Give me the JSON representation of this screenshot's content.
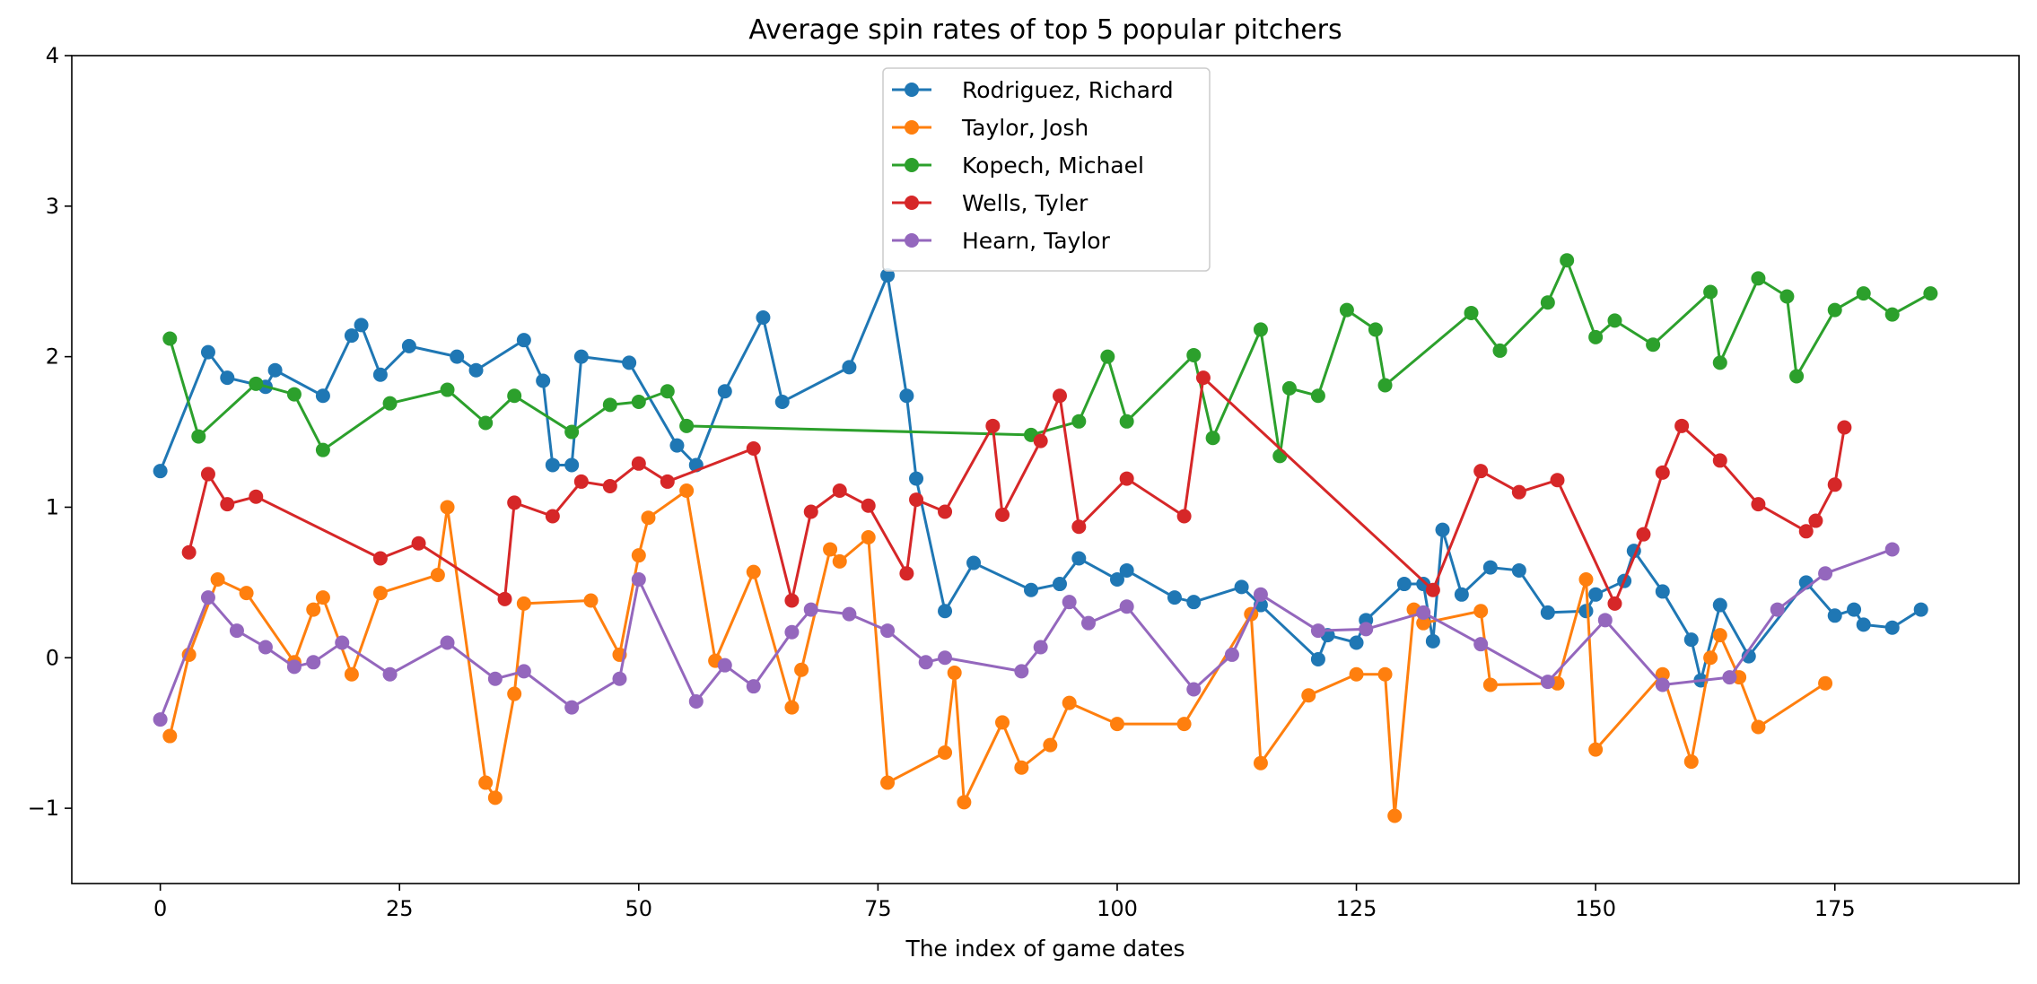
{
  "chart_data": {
    "type": "line",
    "title": "Average spin rates of top 5 popular pitchers",
    "xlabel": "The index of game dates",
    "ylabel": "",
    "xlim": [
      -9.25,
      194.25
    ],
    "ylim": [
      -1.5,
      4
    ],
    "xticks": [
      0,
      25,
      50,
      75,
      100,
      125,
      150,
      175
    ],
    "xtick_labels": [
      "0",
      "25",
      "50",
      "75",
      "100",
      "125",
      "150",
      "175"
    ],
    "yticks": [
      -1,
      0,
      1,
      2,
      3,
      4
    ],
    "ytick_labels": [
      "−1",
      "0",
      "1",
      "2",
      "3",
      "4"
    ],
    "legend_position": "upper-center",
    "series": [
      {
        "name": "Rodriguez, Richard",
        "color": "#1f77b4",
        "x": [
          0,
          5,
          7,
          11,
          12,
          17,
          20,
          21,
          23,
          26,
          31,
          33,
          38,
          40,
          41,
          43,
          44,
          49,
          54,
          56,
          59,
          63,
          65,
          72,
          76,
          78,
          79,
          82,
          85,
          91,
          94,
          96,
          100,
          101,
          106,
          108,
          113,
          115,
          121,
          122,
          125,
          126,
          130,
          132,
          133,
          134,
          136,
          139,
          142,
          145,
          149,
          150,
          153,
          154,
          157,
          160,
          161,
          163,
          166,
          172,
          175,
          177,
          178,
          181,
          184
        ],
        "y": [
          1.24,
          2.03,
          1.86,
          1.8,
          1.91,
          1.74,
          2.14,
          2.21,
          1.88,
          2.07,
          2.0,
          1.91,
          2.11,
          1.84,
          1.28,
          1.28,
          2.0,
          1.96,
          1.41,
          1.28,
          1.77,
          2.26,
          1.7,
          1.93,
          2.54,
          1.74,
          1.19,
          0.31,
          0.63,
          0.45,
          0.49,
          0.66,
          0.52,
          0.58,
          0.4,
          0.37,
          0.47,
          0.35,
          -0.01,
          0.15,
          0.1,
          0.25,
          0.49,
          0.49,
          0.11,
          0.85,
          0.42,
          0.6,
          0.58,
          0.3,
          0.31,
          0.42,
          0.51,
          0.71,
          0.44,
          0.12,
          -0.15,
          0.35,
          0.01,
          0.5,
          0.28,
          0.32,
          0.22,
          0.2,
          0.32
        ]
      },
      {
        "name": "Taylor, Josh",
        "color": "#ff7f0e",
        "x": [
          1,
          3,
          6,
          9,
          14,
          16,
          17,
          20,
          23,
          29,
          30,
          34,
          35,
          37,
          38,
          45,
          48,
          50,
          51,
          55,
          58,
          62,
          66,
          67,
          70,
          71,
          74,
          76,
          82,
          83,
          84,
          88,
          90,
          93,
          95,
          100,
          107,
          114,
          115,
          120,
          125,
          128,
          129,
          131,
          132,
          138,
          139,
          146,
          149,
          150,
          157,
          160,
          162,
          163,
          165,
          167,
          174
        ],
        "y": [
          -0.52,
          0.02,
          0.52,
          0.43,
          -0.03,
          0.32,
          0.4,
          -0.11,
          0.43,
          0.55,
          1.0,
          -0.83,
          -0.93,
          -0.24,
          0.36,
          0.38,
          0.02,
          0.68,
          0.93,
          1.11,
          -0.02,
          0.57,
          -0.33,
          -0.08,
          0.72,
          0.64,
          0.8,
          -0.83,
          -0.63,
          -0.1,
          -0.96,
          -0.43,
          -0.73,
          -0.58,
          -0.3,
          -0.44,
          -0.44,
          0.29,
          -0.7,
          -0.25,
          -0.11,
          -0.11,
          -1.05,
          0.32,
          0.23,
          0.31,
          -0.18,
          -0.17,
          0.52,
          -0.61,
          -0.11,
          -0.69,
          0.0,
          0.15,
          -0.13,
          -0.46,
          -0.17
        ]
      },
      {
        "name": "Kopech, Michael",
        "color": "#2ca02c",
        "x": [
          1,
          4,
          10,
          14,
          17,
          24,
          30,
          34,
          37,
          43,
          47,
          50,
          53,
          55,
          91,
          96,
          99,
          101,
          108,
          110,
          115,
          117,
          118,
          121,
          124,
          127,
          128,
          137,
          140,
          145,
          147,
          150,
          152,
          156,
          162,
          163,
          167,
          170,
          171,
          175,
          178,
          181,
          185
        ],
        "y": [
          2.12,
          1.47,
          1.82,
          1.75,
          1.38,
          1.69,
          1.78,
          1.56,
          1.74,
          1.5,
          1.68,
          1.7,
          1.77,
          1.54,
          1.48,
          1.57,
          2.0,
          1.57,
          2.01,
          1.46,
          2.18,
          1.34,
          1.79,
          1.74,
          2.31,
          2.18,
          1.81,
          2.29,
          2.04,
          2.36,
          2.64,
          2.13,
          2.24,
          2.08,
          2.43,
          1.96,
          2.52,
          2.4,
          1.87,
          2.31,
          2.42,
          2.28,
          2.42
        ]
      },
      {
        "name": "Wells, Tyler",
        "color": "#d62728",
        "x": [
          3,
          5,
          7,
          10,
          23,
          27,
          36,
          37,
          41,
          44,
          47,
          50,
          53,
          62,
          66,
          68,
          71,
          74,
          78,
          79,
          82,
          87,
          88,
          92,
          94,
          96,
          101,
          107,
          109,
          133,
          138,
          142,
          146,
          152,
          155,
          157,
          159,
          163,
          167,
          172,
          173,
          175,
          176
        ],
        "y": [
          0.7,
          1.22,
          1.02,
          1.07,
          0.66,
          0.76,
          0.39,
          1.03,
          0.94,
          1.17,
          1.14,
          1.29,
          1.17,
          1.39,
          0.38,
          0.97,
          1.11,
          1.01,
          0.56,
          1.05,
          0.97,
          1.54,
          0.95,
          1.44,
          1.74,
          0.87,
          1.19,
          0.94,
          1.86,
          0.45,
          1.24,
          1.1,
          1.18,
          0.36,
          0.82,
          1.23,
          1.54,
          1.31,
          1.02,
          0.84,
          0.91,
          1.15,
          1.53
        ]
      },
      {
        "name": "Hearn, Taylor",
        "color": "#9467bd",
        "x": [
          0,
          5,
          8,
          11,
          14,
          16,
          19,
          24,
          30,
          35,
          38,
          43,
          48,
          50,
          56,
          59,
          62,
          66,
          68,
          72,
          76,
          80,
          82,
          90,
          92,
          95,
          97,
          101,
          108,
          112,
          115,
          121,
          126,
          132,
          138,
          145,
          151,
          157,
          164,
          169,
          174,
          181
        ],
        "y": [
          -0.41,
          0.4,
          0.18,
          0.07,
          -0.06,
          -0.03,
          0.1,
          -0.11,
          0.1,
          -0.14,
          -0.09,
          -0.33,
          -0.14,
          0.52,
          -0.29,
          -0.05,
          -0.19,
          0.17,
          0.32,
          0.29,
          0.18,
          -0.03,
          0.0,
          -0.09,
          0.07,
          0.37,
          0.23,
          0.34,
          -0.21,
          0.02,
          0.42,
          0.18,
          0.19,
          0.3,
          0.09,
          -0.16,
          0.25,
          -0.18,
          -0.13,
          0.32,
          0.56,
          0.72
        ]
      }
    ]
  }
}
